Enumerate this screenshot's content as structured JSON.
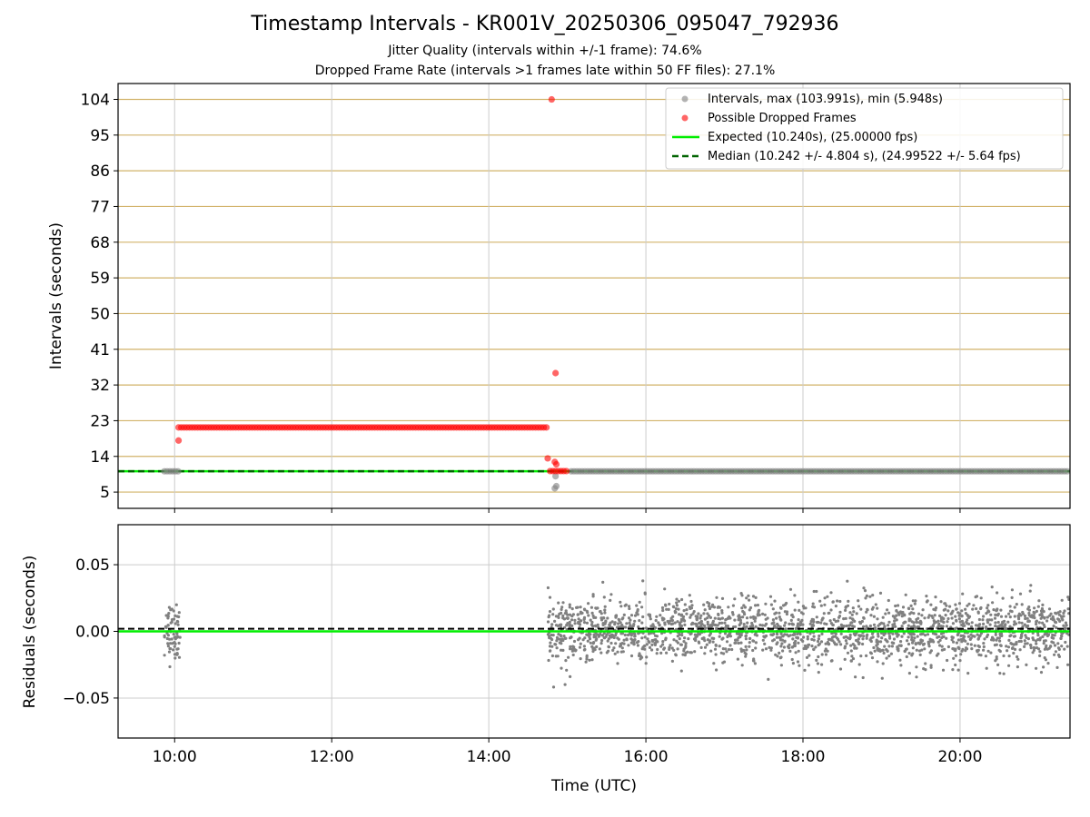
{
  "title": "Timestamp Intervals - KR001V_20250306_095047_792936",
  "subtitle_jitter": "Jitter Quality (intervals within +/-1 frame): 74.6%",
  "subtitle_dropped": "Dropped Frame Rate (intervals >1 frames late within 50 FF files): 27.1%",
  "colors": {
    "interval_points": "#808080",
    "dropped_points": "#ff0000",
    "expected_line": "#00ee00",
    "median_line": "#006400",
    "hgrid": "#d2b36a",
    "vgrid": "#cccccc"
  },
  "chart_data": [
    {
      "type": "scatter",
      "name": "intervals-panel",
      "ylabel": "Intervals (seconds)",
      "xlabel": "",
      "xlim": [
        9.28,
        21.4
      ],
      "ylim": [
        0.9,
        108
      ],
      "yticks": [
        5,
        14,
        23,
        32,
        41,
        50,
        59,
        68,
        77,
        86,
        95,
        104
      ],
      "ytick_labels": [
        "5",
        "14",
        "23",
        "32",
        "41",
        "50",
        "59",
        "68",
        "77",
        "86",
        "95",
        "104"
      ],
      "grid": true,
      "legend_position": "top-right",
      "legend": [
        "Intervals, max (103.991s), min (5.948s)",
        "Possible Dropped Frames",
        "Expected (10.240s), (25.00000 fps)",
        "Median (10.242 +/- 4.804 s), (24.99522 +/- 5.64 fps)"
      ],
      "expected_value": 10.24,
      "median_value": 10.242,
      "series": [
        {
          "name": "Intervals",
          "segments": [
            {
              "x_range": [
                9.87,
                10.07
              ],
              "y": 10.24
            },
            {
              "x_range": [
                15.05,
                21.4
              ],
              "y": 10.24
            }
          ],
          "points": [
            {
              "x": 14.84,
              "y": 5.95
            },
            {
              "x": 14.86,
              "y": 6.5
            },
            {
              "x": 14.85,
              "y": 9.0
            }
          ]
        },
        {
          "name": "Possible Dropped Frames",
          "segments": [
            {
              "x_range": [
                10.05,
                14.75
              ],
              "y": 21.3
            },
            {
              "x_range": [
                14.78,
                15.0
              ],
              "y": 10.3
            }
          ],
          "points": [
            {
              "x": 10.05,
              "y": 18.0
            },
            {
              "x": 14.8,
              "y": 103.99
            },
            {
              "x": 14.85,
              "y": 35.0
            },
            {
              "x": 14.75,
              "y": 13.5
            },
            {
              "x": 14.84,
              "y": 12.6
            },
            {
              "x": 14.86,
              "y": 12.0
            }
          ]
        }
      ]
    },
    {
      "type": "scatter",
      "name": "residuals-panel",
      "ylabel": "Residuals (seconds)",
      "xlabel": "Time (UTC)",
      "xlim": [
        9.28,
        21.4
      ],
      "ylim": [
        -0.08,
        0.08
      ],
      "yticks": [
        -0.05,
        0,
        0.05
      ],
      "ytick_labels": [
        "−0.05",
        "0.00",
        "0.05"
      ],
      "xticks": [
        10,
        12,
        14,
        16,
        18,
        20
      ],
      "xtick_labels": [
        "10:00",
        "12:00",
        "14:00",
        "16:00",
        "18:00",
        "20:00"
      ],
      "grid": true,
      "expected_value": 0.0,
      "median_value": 0.002,
      "residual_clusters": [
        {
          "x_range": [
            9.87,
            10.07
          ],
          "std": 0.011,
          "count": 70
        },
        {
          "x_range": [
            14.75,
            21.4
          ],
          "std": 0.012,
          "count": 2100
        }
      ]
    }
  ]
}
